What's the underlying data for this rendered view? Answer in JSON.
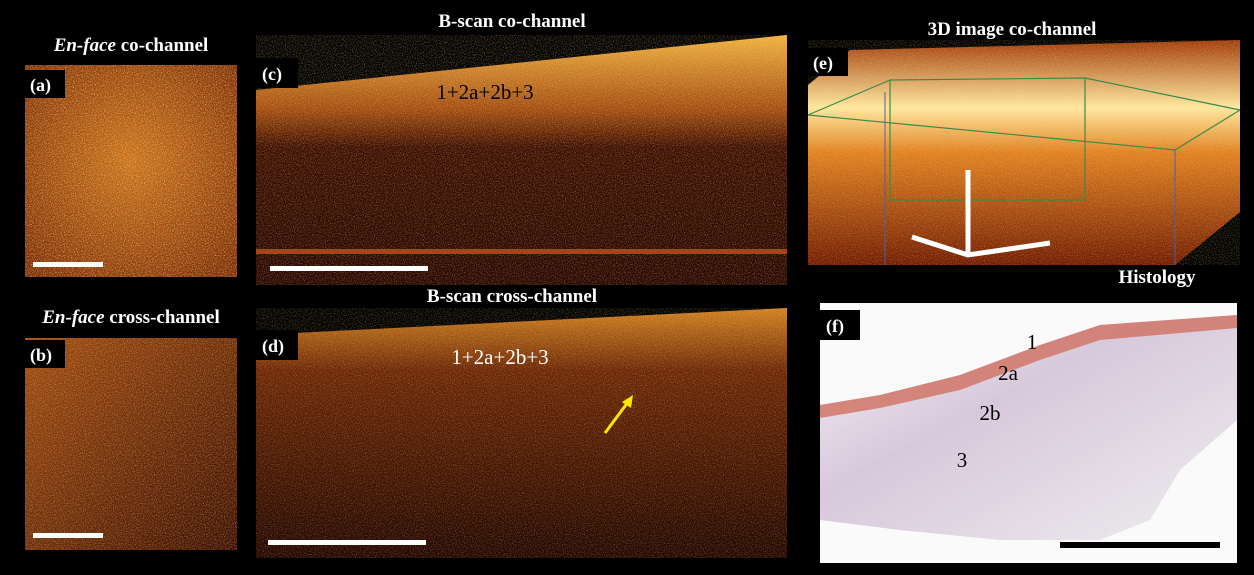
{
  "panels": [
    {
      "label": "(a)",
      "title_italic": "En-face",
      "title": "co-channel"
    },
    {
      "label": "(b)",
      "title_italic": "En-face",
      "title": "cross-channel"
    },
    {
      "label": "(c)",
      "title": "B-scan co-channel",
      "annotation": "1+2a+2b+3"
    },
    {
      "label": "(d)",
      "title": "B-scan cross-channel",
      "annotation": "1+2a+2b+3"
    },
    {
      "label": "(e)",
      "title": "3D image co-channel"
    },
    {
      "label": "(f)",
      "title": "Histology",
      "layers": [
        "1",
        "2a",
        "2b",
        "3"
      ]
    }
  ]
}
